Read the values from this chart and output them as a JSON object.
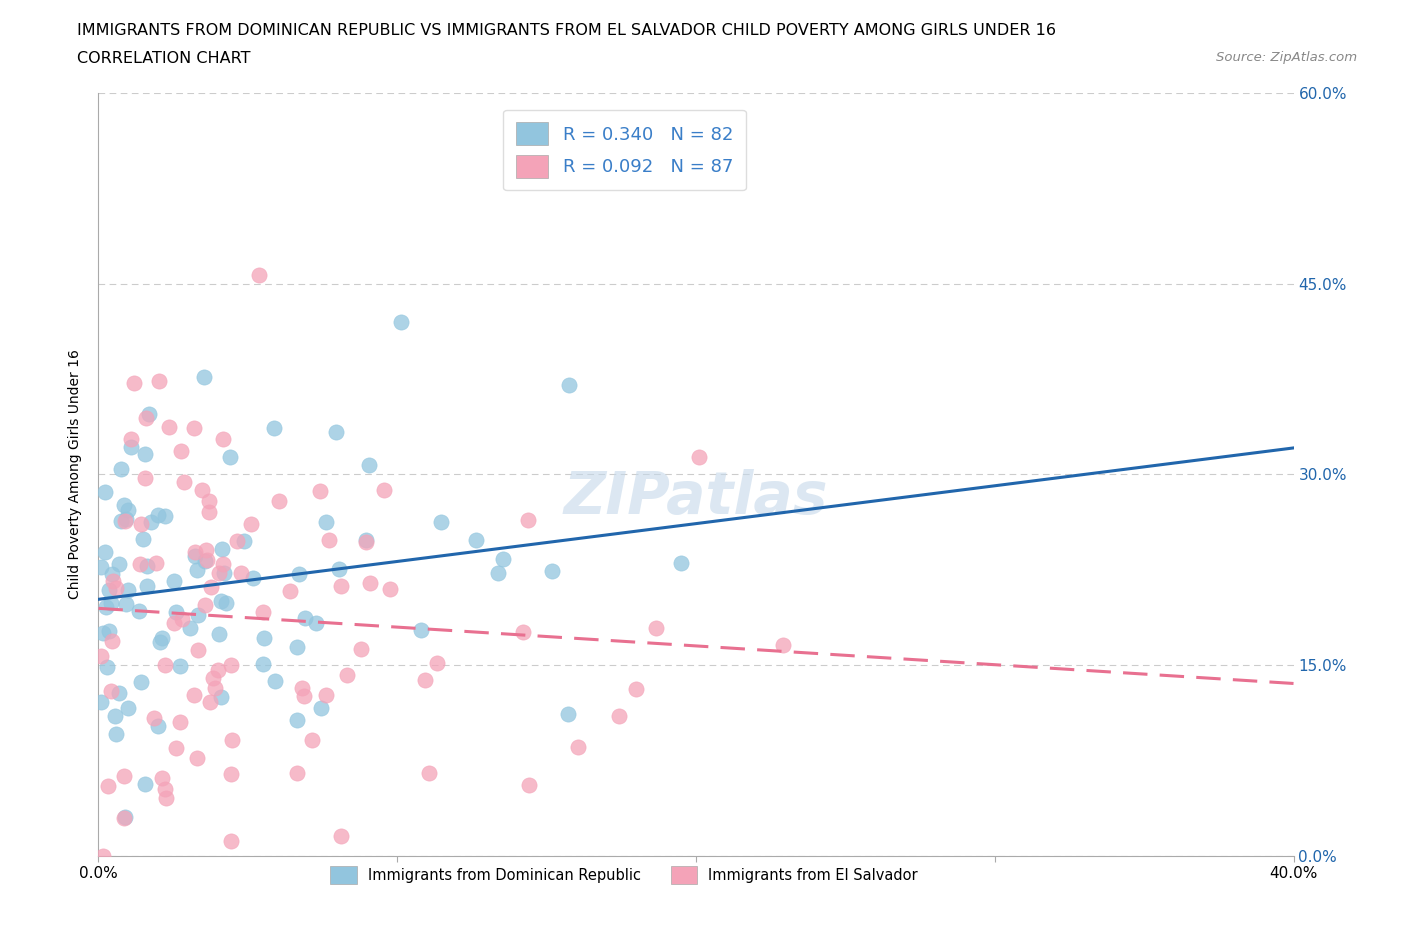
{
  "title": "IMMIGRANTS FROM DOMINICAN REPUBLIC VS IMMIGRANTS FROM EL SALVADOR CHILD POVERTY AMONG GIRLS UNDER 16",
  "subtitle": "CORRELATION CHART",
  "source": "Source: ZipAtlas.com",
  "ylabel": "Child Poverty Among Girls Under 16",
  "xlim": [
    0.0,
    0.4
  ],
  "ylim": [
    0.0,
    0.6
  ],
  "xticks": [
    0.0,
    0.1,
    0.2,
    0.3,
    0.4
  ],
  "yticks": [
    0.0,
    0.15,
    0.3,
    0.45,
    0.6
  ],
  "xtick_labels": [
    "0.0%",
    "",
    "",
    "",
    "40.0%"
  ],
  "ytick_labels_right": [
    "0.0%",
    "15.0%",
    "30.0%",
    "45.0%",
    "60.0%"
  ],
  "series1_label": "Immigrants from Dominican Republic",
  "series2_label": "Immigrants from El Salvador",
  "series1_color": "#92c5de",
  "series2_color": "#f4a3b8",
  "series1_line_color": "#2166ac",
  "series2_line_color": "#e87090",
  "R1": 0.34,
  "N1": 82,
  "R2": 0.092,
  "N2": 87,
  "legend_R_color": "#3a7ec8",
  "watermark": "ZIPatlas",
  "background_color": "#ffffff",
  "grid_color": "#cccccc",
  "title_fontsize": 11.5,
  "subtitle_fontsize": 11.5,
  "axis_label_fontsize": 10,
  "tick_fontsize": 11,
  "legend_fontsize": 13
}
